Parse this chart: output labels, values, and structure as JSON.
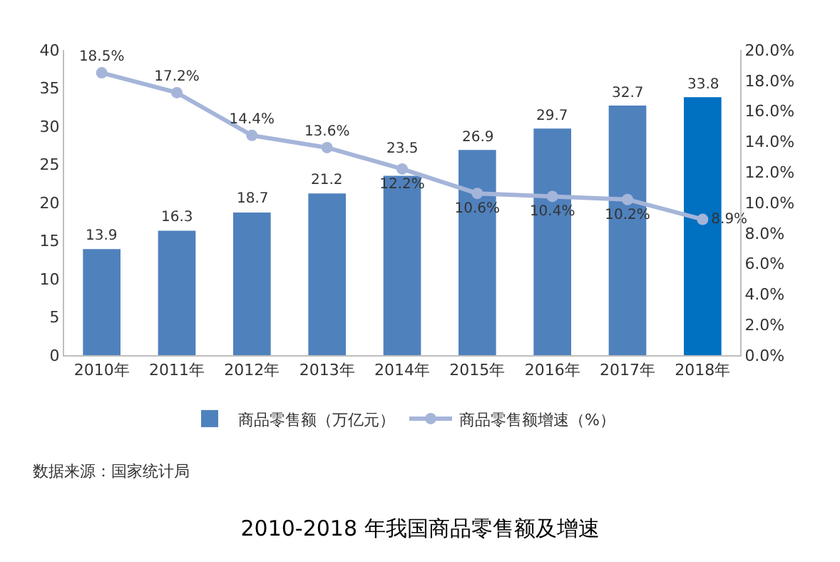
{
  "chart_data": {
    "type": "bar",
    "title": "2010-2018 年我国商品零售额及增速",
    "categories": [
      "2010年",
      "2011年",
      "2012年",
      "2013年",
      "2014年",
      "2015年",
      "2016年",
      "2017年",
      "2018年"
    ],
    "series": [
      {
        "name": "商品零售额（万亿元）",
        "colors": [
          "#4f81bd",
          "#4f81bd",
          "#4f81bd",
          "#4f81bd",
          "#4f81bd",
          "#4f81bd",
          "#4f81bd",
          "#4f81bd",
          "#0070c0"
        ],
        "values": [
          13.9,
          16.3,
          18.7,
          21.2,
          23.5,
          26.9,
          29.7,
          32.7,
          33.8
        ]
      },
      {
        "name": "商品零售额增速（%）",
        "type": "line",
        "axis": "y2",
        "color": "#a5b5d9",
        "values": [
          18.5,
          17.2,
          14.4,
          13.6,
          12.2,
          10.6,
          10.4,
          10.2,
          8.9
        ],
        "value_labels": [
          "18.5%",
          "17.2%",
          "14.4%",
          "13.6%",
          "12.2%",
          "10.6%",
          "10.4%",
          "10.2%",
          "8.9%"
        ]
      }
    ],
    "ylim": [
      0,
      40
    ],
    "yticks": [
      0,
      5,
      10,
      15,
      20,
      25,
      30,
      35,
      40
    ],
    "y2lim": [
      0,
      20
    ],
    "y2ticks": [
      {
        "value": 0,
        "label": "0.0%"
      },
      {
        "value": 2,
        "label": "2.0%"
      },
      {
        "value": 4,
        "label": "4.0%"
      },
      {
        "value": 6,
        "label": "6.0%"
      },
      {
        "value": 8,
        "label": "8.0%"
      },
      {
        "value": 10,
        "label": "10.0%"
      },
      {
        "value": 12,
        "label": "12.0%"
      },
      {
        "value": 14,
        "label": "14.0%"
      },
      {
        "value": 16,
        "label": "16.0%"
      },
      {
        "value": 18,
        "label": "18.0%"
      },
      {
        "value": 20,
        "label": "20.0%"
      }
    ],
    "data_labels": true,
    "legend": "bottom",
    "marker": "circle",
    "line_style": "solid",
    "annotations": [
      "数据来源：国家统计局"
    ]
  }
}
